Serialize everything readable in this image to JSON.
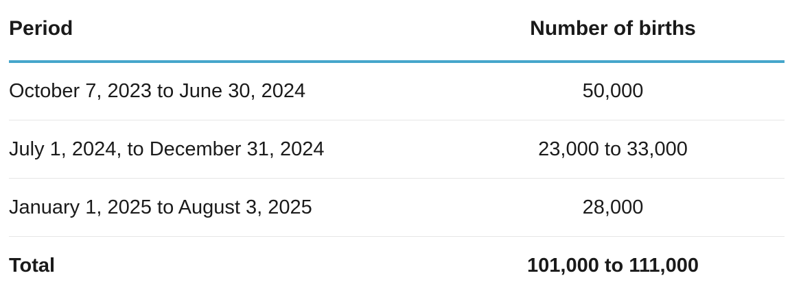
{
  "table": {
    "headers": {
      "period": "Period",
      "births": "Number of births"
    },
    "rows": [
      {
        "period": "October 7, 2023 to June 30, 2024",
        "births": "50,000"
      },
      {
        "period": "July 1, 2024, to December 31, 2024",
        "births": "23,000 to 33,000"
      },
      {
        "period": "January 1, 2025 to August 3, 2025",
        "births": "28,000"
      }
    ],
    "total": {
      "period": "Total",
      "births": "101,000 to 111,000"
    }
  }
}
